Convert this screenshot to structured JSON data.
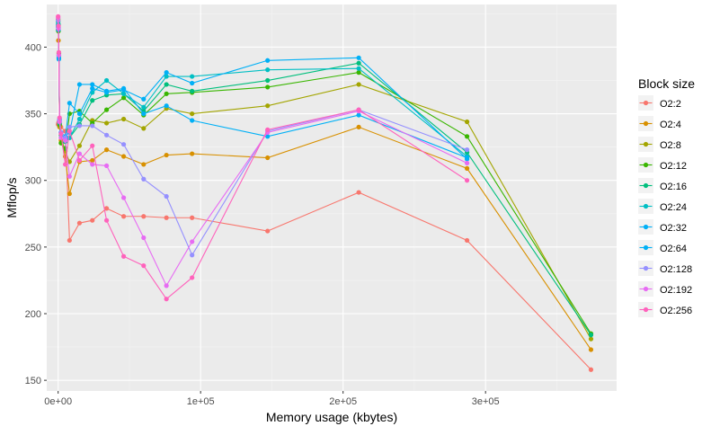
{
  "chart_data": {
    "type": "line",
    "title": "",
    "xlabel": "Memory usage (kbytes)",
    "ylabel": "Mflop/s",
    "xlim": [
      -8000,
      392000
    ],
    "ylim": [
      142,
      432
    ],
    "x_ticks": [
      0,
      100000,
      200000,
      300000
    ],
    "x_tick_labels": [
      "0e+00",
      "1e+05",
      "2e+05",
      "3e+05"
    ],
    "y_ticks": [
      150,
      200,
      250,
      300,
      350,
      400
    ],
    "y_tick_labels": [
      "150",
      "200",
      "250",
      "300",
      "350",
      "400"
    ],
    "grid": true,
    "legend_title": "Block size",
    "legend_position": "right",
    "series": [
      {
        "name": "O2:2",
        "color": "#F8766D",
        "x": [
          0,
          200,
          500,
          1000,
          2000,
          5000,
          8000,
          15000,
          24000,
          34000,
          46000,
          60000,
          76000,
          94000,
          147000,
          211000,
          287000,
          374000
        ],
        "y": [
          342,
          343,
          344,
          342,
          340,
          337,
          255,
          268,
          270,
          279,
          273,
          273,
          272,
          272,
          262,
          291,
          255,
          158
        ]
      },
      {
        "name": "O2:4",
        "color": "#D89000",
        "x": [
          0,
          200,
          500,
          1000,
          2000,
          5000,
          8000,
          15000,
          24000,
          34000,
          46000,
          60000,
          76000,
          94000,
          147000,
          211000,
          287000,
          374000
        ],
        "y": [
          420,
          405,
          395,
          340,
          330,
          318,
          290,
          314,
          315,
          323,
          318,
          312,
          319,
          320,
          317,
          340,
          309,
          173
        ]
      },
      {
        "name": "O2:8",
        "color": "#A3A500",
        "x": [
          0,
          200,
          500,
          1000,
          2000,
          5000,
          8000,
          15000,
          24000,
          34000,
          46000,
          60000,
          76000,
          94000,
          147000,
          211000,
          287000,
          374000
        ],
        "y": [
          421,
          416,
          396,
          341,
          332,
          322,
          314,
          326,
          345,
          343,
          346,
          339,
          354,
          350,
          356,
          372,
          344,
          181
        ]
      },
      {
        "name": "O2:12",
        "color": "#39B600",
        "x": [
          0,
          200,
          500,
          1000,
          2000,
          5000,
          8000,
          15000,
          24000,
          34000,
          46000,
          60000,
          76000,
          94000,
          147000,
          211000,
          287000,
          374000
        ],
        "y": [
          413,
          412,
          395,
          342,
          328,
          324,
          350,
          352,
          343,
          353,
          362,
          349,
          365,
          366,
          370,
          381,
          333,
          185
        ]
      },
      {
        "name": "O2:16",
        "color": "#00BF7D",
        "x": [
          0,
          200,
          500,
          1000,
          2000,
          5000,
          8000,
          15000,
          24000,
          34000,
          46000,
          60000,
          76000,
          94000,
          147000,
          211000,
          287000,
          374000
        ],
        "y": [
          419,
          417,
          394,
          343,
          334,
          329,
          332,
          342,
          360,
          364,
          365,
          352,
          372,
          367,
          375,
          388,
          321,
          184
        ]
      },
      {
        "name": "O2:24",
        "color": "#00BFC4",
        "x": [
          0,
          200,
          500,
          1000,
          2000,
          5000,
          8000,
          15000,
          24000,
          34000,
          46000,
          60000,
          76000,
          94000,
          147000,
          211000,
          287000
        ],
        "y": [
          417,
          415,
          393,
          344,
          336,
          330,
          332,
          346,
          366,
          375,
          365,
          355,
          378,
          378,
          383,
          384,
          318
        ]
      },
      {
        "name": "O2:32",
        "color": "#00B0F6",
        "x": [
          0,
          200,
          500,
          1000,
          2000,
          5000,
          8000,
          15000,
          24000,
          34000,
          46000,
          60000,
          76000,
          94000,
          147000,
          211000,
          287000
        ],
        "y": [
          416,
          414,
          392,
          345,
          336,
          332,
          358,
          350,
          369,
          366,
          368,
          361,
          381,
          373,
          390,
          392,
          316
        ]
      },
      {
        "name": "O2:64",
        "color": "#00B0F6",
        "x": [
          0,
          200,
          500,
          1000,
          2000,
          5000,
          8000,
          15000,
          24000,
          34000,
          46000,
          60000,
          76000,
          94000,
          147000,
          211000,
          287000
        ],
        "y": [
          415,
          413,
          391,
          346,
          336,
          333,
          336,
          372,
          372,
          367,
          369,
          350,
          356,
          345,
          333,
          349,
          317
        ]
      },
      {
        "name": "O2:128",
        "color": "#9590FF",
        "x": [
          0,
          200,
          500,
          1000,
          2000,
          5000,
          8000,
          15000,
          24000,
          34000,
          46000,
          60000,
          76000,
          94000,
          147000,
          211000,
          287000
        ],
        "y": [
          420,
          415,
          394,
          345,
          336,
          332,
          340,
          341,
          341,
          334,
          327,
          301,
          288,
          244,
          337,
          353,
          323
        ]
      },
      {
        "name": "O2:192",
        "color": "#E76BF3",
        "x": [
          0,
          200,
          500,
          1000,
          2000,
          5000,
          8000,
          15000,
          24000,
          34000,
          46000,
          60000,
          76000,
          94000,
          147000,
          211000,
          287000
        ],
        "y": [
          422,
          414,
          394,
          344,
          332,
          330,
          303,
          320,
          312,
          311,
          287,
          257,
          221,
          254,
          336,
          352,
          313
        ]
      },
      {
        "name": "O2:256",
        "color": "#FF62BC",
        "x": [
          0,
          200,
          500,
          1000,
          2000,
          5000,
          8000,
          15000,
          24000,
          34000,
          46000,
          60000,
          76000,
          94000,
          147000,
          211000,
          287000
        ],
        "y": [
          423,
          416,
          396,
          347,
          335,
          312,
          337,
          315,
          326,
          270,
          243,
          236,
          211,
          227,
          338,
          353,
          300
        ]
      }
    ]
  }
}
